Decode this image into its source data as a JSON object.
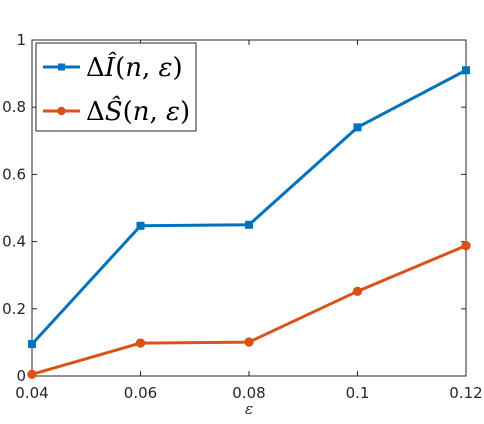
{
  "chart_data": {
    "type": "line",
    "x": [
      0.04,
      0.06,
      0.08,
      0.1,
      0.12
    ],
    "series": [
      {
        "name_parts": [
          "Δ",
          "Î",
          "(",
          "n",
          ", ",
          "ε",
          ")"
        ],
        "values": [
          0.095,
          0.447,
          0.45,
          0.74,
          0.91
        ],
        "color": "#0072BD",
        "marker": "square"
      },
      {
        "name_parts": [
          "Δ",
          "Ŝ",
          "(",
          "n",
          ", ",
          "ε",
          ")"
        ],
        "values": [
          0.005,
          0.098,
          0.101,
          0.252,
          0.388
        ],
        "color": "#D95319",
        "marker": "circle"
      }
    ],
    "xlabel": "ε",
    "xlim": [
      0.04,
      0.12
    ],
    "ylim": [
      0,
      1
    ],
    "x_ticks": [
      "0.04",
      "0.06",
      "0.08",
      "0.1",
      "0.12"
    ],
    "y_ticks": [
      "0",
      "0.2",
      "0.4",
      "0.6",
      "0.8",
      "1"
    ],
    "grid": false,
    "legend_position": "top-left"
  }
}
